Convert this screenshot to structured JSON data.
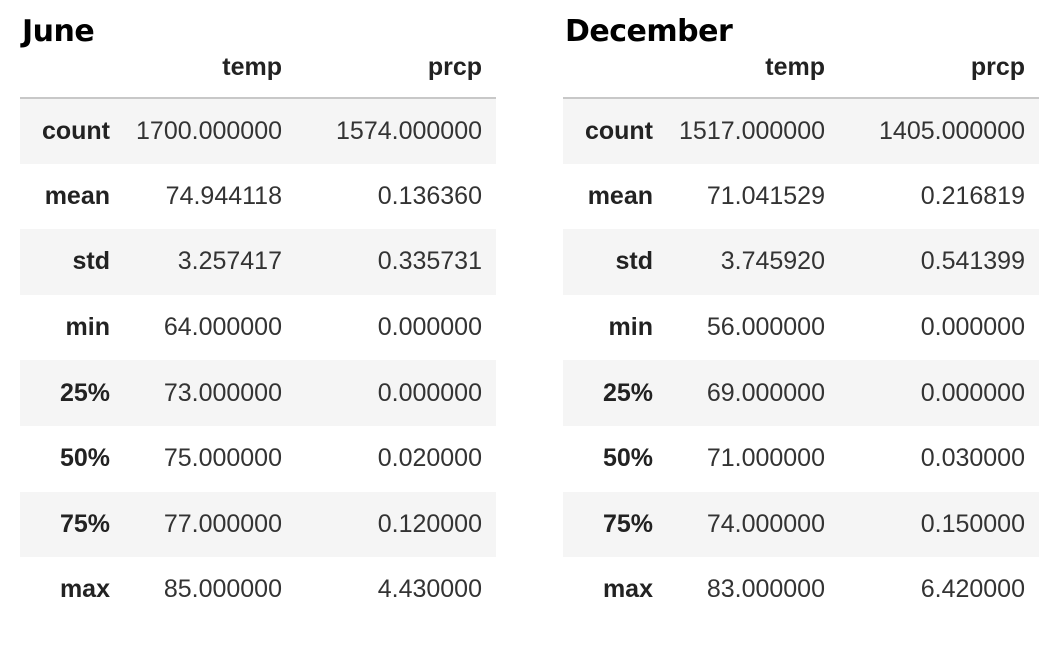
{
  "tables": [
    {
      "title": "June",
      "columns": [
        "temp",
        "prcp"
      ],
      "rows": [
        {
          "label": "count",
          "temp": "1700.000000",
          "prcp": "1574.000000"
        },
        {
          "label": "mean",
          "temp": "74.944118",
          "prcp": "0.136360"
        },
        {
          "label": "std",
          "temp": "3.257417",
          "prcp": "0.335731"
        },
        {
          "label": "min",
          "temp": "64.000000",
          "prcp": "0.000000"
        },
        {
          "label": "25%",
          "temp": "73.000000",
          "prcp": "0.000000"
        },
        {
          "label": "50%",
          "temp": "75.000000",
          "prcp": "0.020000"
        },
        {
          "label": "75%",
          "temp": "77.000000",
          "prcp": "0.120000"
        },
        {
          "label": "max",
          "temp": "85.000000",
          "prcp": "4.430000"
        }
      ]
    },
    {
      "title": "December",
      "columns": [
        "temp",
        "prcp"
      ],
      "rows": [
        {
          "label": "count",
          "temp": "1517.000000",
          "prcp": "1405.000000"
        },
        {
          "label": "mean",
          "temp": "71.041529",
          "prcp": "0.216819"
        },
        {
          "label": "std",
          "temp": "3.745920",
          "prcp": "0.541399"
        },
        {
          "label": "min",
          "temp": "56.000000",
          "prcp": "0.000000"
        },
        {
          "label": "25%",
          "temp": "69.000000",
          "prcp": "0.000000"
        },
        {
          "label": "50%",
          "temp": "71.000000",
          "prcp": "0.030000"
        },
        {
          "label": "75%",
          "temp": "74.000000",
          "prcp": "0.150000"
        },
        {
          "label": "max",
          "temp": "83.000000",
          "prcp": "6.420000"
        }
      ]
    }
  ]
}
